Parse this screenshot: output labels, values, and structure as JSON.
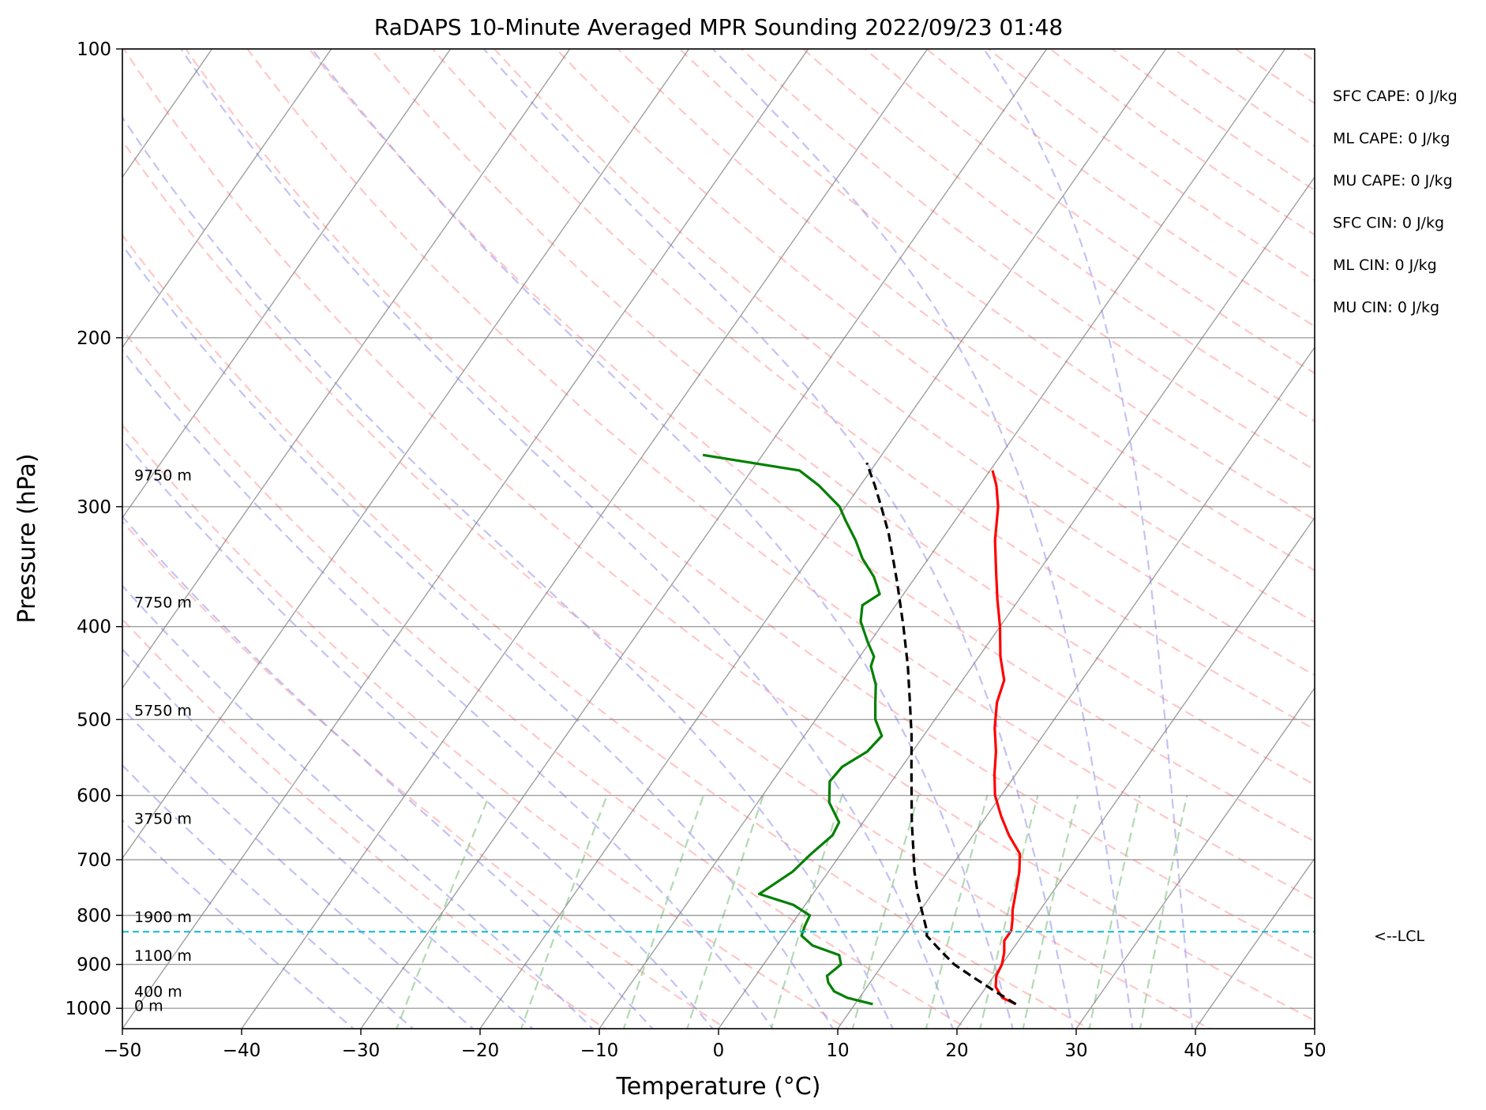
{
  "chart_data": {
    "type": "line",
    "title": "RaDAPS 10-Minute Averaged MPR Sounding 2022/09/23 01:48",
    "xlabel": "Temperature (°C)",
    "ylabel": "Pressure (hPa)",
    "xlim": [
      -50,
      50
    ],
    "ylim": [
      1050,
      100
    ],
    "yscale": "log",
    "skew": "skew-T",
    "grid": true,
    "xticks": [
      -50,
      -40,
      -30,
      -20,
      -10,
      0,
      10,
      20,
      30,
      40,
      50
    ],
    "xtick_labels": [
      "−50",
      "−40",
      "−30",
      "−20",
      "−10",
      "0",
      "10",
      "20",
      "30",
      "40",
      "50"
    ],
    "yticks": [
      100,
      200,
      300,
      400,
      500,
      600,
      700,
      800,
      900,
      1000
    ],
    "ytick_labels": [
      "100",
      "200",
      "300",
      "400",
      "500",
      "600",
      "700",
      "800",
      "900",
      "1000"
    ],
    "colors": {
      "temperature": "#ff0000",
      "dewpoint": "#008000",
      "parcel": "#000000",
      "lcl": "#17becf",
      "dry_adiabats": "#ff9999",
      "moist_adiabats": "#9999ee",
      "mixing_ratio": "#88c488",
      "isotherms": "#808080"
    },
    "series": [
      {
        "key": "temperature",
        "points": [
          [
            990,
            23.5
          ],
          [
            975,
            22.0
          ],
          [
            950,
            20.8
          ],
          [
            925,
            20.2
          ],
          [
            900,
            20.0
          ],
          [
            875,
            19.5
          ],
          [
            850,
            18.8
          ],
          [
            830,
            18.8
          ],
          [
            810,
            18.3
          ],
          [
            790,
            17.7
          ],
          [
            760,
            17.0
          ],
          [
            720,
            16.0
          ],
          [
            690,
            15.0
          ],
          [
            660,
            13.0
          ],
          [
            630,
            11.2
          ],
          [
            600,
            9.5
          ],
          [
            570,
            8.2
          ],
          [
            540,
            7.0
          ],
          [
            510,
            5.5
          ],
          [
            480,
            4.2
          ],
          [
            455,
            3.5
          ],
          [
            430,
            1.8
          ],
          [
            400,
            0.0
          ],
          [
            375,
            -1.8
          ],
          [
            350,
            -3.6
          ],
          [
            325,
            -5.5
          ],
          [
            300,
            -7.2
          ],
          [
            285,
            -8.6
          ],
          [
            275,
            -9.8
          ]
        ]
      },
      {
        "key": "dewpoint",
        "points": [
          [
            990,
            11.5
          ],
          [
            975,
            9.0
          ],
          [
            960,
            7.5
          ],
          [
            940,
            6.5
          ],
          [
            925,
            6.0
          ],
          [
            900,
            6.5
          ],
          [
            880,
            5.8
          ],
          [
            860,
            3.0
          ],
          [
            840,
            1.5
          ],
          [
            820,
            1.2
          ],
          [
            800,
            1.0
          ],
          [
            780,
            -1.0
          ],
          [
            760,
            -4.5
          ],
          [
            720,
            -3.0
          ],
          [
            690,
            -2.5
          ],
          [
            660,
            -1.8
          ],
          [
            640,
            -2.0
          ],
          [
            610,
            -4.0
          ],
          [
            580,
            -5.2
          ],
          [
            560,
            -5.0
          ],
          [
            540,
            -3.8
          ],
          [
            520,
            -3.5
          ],
          [
            500,
            -5.0
          ],
          [
            480,
            -6.0
          ],
          [
            460,
            -7.0
          ],
          [
            440,
            -8.5
          ],
          [
            430,
            -8.8
          ],
          [
            415,
            -10.2
          ],
          [
            395,
            -12.0
          ],
          [
            380,
            -12.8
          ],
          [
            370,
            -12.0
          ],
          [
            355,
            -13.5
          ],
          [
            340,
            -15.5
          ],
          [
            325,
            -17.2
          ],
          [
            310,
            -19.2
          ],
          [
            300,
            -20.5
          ],
          [
            285,
            -23.5
          ],
          [
            275,
            -26.0
          ],
          [
            265,
            -35.0
          ]
        ]
      },
      {
        "key": "parcel",
        "points": [
          [
            990,
            23.5
          ],
          [
            960,
            21.0
          ],
          [
            930,
            18.5
          ],
          [
            900,
            16.0
          ],
          [
            870,
            14.0
          ],
          [
            840,
            12.0
          ],
          [
            832,
            11.8
          ],
          [
            800,
            10.5
          ],
          [
            760,
            8.8
          ],
          [
            720,
            7.2
          ],
          [
            680,
            5.7
          ],
          [
            640,
            4.1
          ],
          [
            600,
            2.5
          ],
          [
            560,
            0.8
          ],
          [
            520,
            -1.0
          ],
          [
            480,
            -3.1
          ],
          [
            440,
            -5.4
          ],
          [
            400,
            -8.1
          ],
          [
            360,
            -11.2
          ],
          [
            320,
            -14.8
          ],
          [
            300,
            -17.0
          ],
          [
            285,
            -18.8
          ],
          [
            270,
            -20.8
          ]
        ]
      }
    ],
    "lcl": {
      "pressure": 832,
      "label": "<--LCL"
    },
    "height_labels": [
      {
        "pressure": 993,
        "text": "0 m"
      },
      {
        "pressure": 960,
        "text": "400 m"
      },
      {
        "pressure": 880,
        "text": "1100 m"
      },
      {
        "pressure": 802,
        "text": "1900 m"
      },
      {
        "pressure": 634,
        "text": "3750 m"
      },
      {
        "pressure": 489,
        "text": "5750 m"
      },
      {
        "pressure": 377,
        "text": "7750 m"
      },
      {
        "pressure": 278,
        "text": "9750 m"
      }
    ],
    "stats": [
      {
        "text": "SFC CAPE: 0 J/kg"
      },
      {
        "text": "ML CAPE: 0 J/kg"
      },
      {
        "text": "MU CAPE: 0 J/kg"
      },
      {
        "text": "SFC CIN: 0 J/kg"
      },
      {
        "text": "ML CIN: 0 J/kg"
      },
      {
        "text": "MU CIN: 0 J/kg"
      }
    ]
  }
}
